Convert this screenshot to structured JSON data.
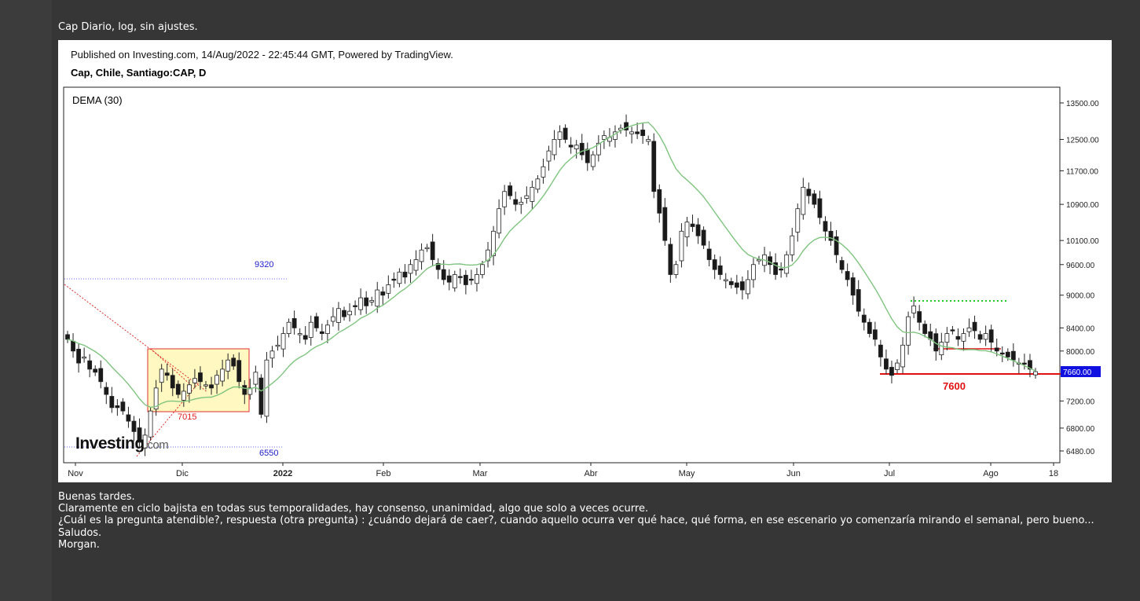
{
  "post": {
    "caption": "Cap Diario, log, sin ajustes.",
    "lines": [
      "Buenas tardes.",
      "Claramente en ciclo bajista en todas sus temporalidades, hay consenso, unanimidad, algo que solo a veces ocurre.",
      "¿Cuál es la pregunta atendible?, respuesta (otra pregunta) : ¿cuándo dejará de caer?, cuando aquello ocurra ver qué hace, qué forma, en ese escenario yo comenzaría mirando el semanal, pero bueno...",
      "Saludos.",
      "Morgan."
    ]
  },
  "chart": {
    "published": "Published on Investing.com, 14/Aug/2022 - 22:45:44 GMT, Powered by TradingView.",
    "symbol": "Cap, Chile, Santiago:CAP, D",
    "indicator": "DEMA (30)",
    "logo_text": "Investing",
    "logo_suffix": ".com"
  },
  "chart_data": {
    "type": "candlestick",
    "title": "Cap, Chile, Santiago:CAP, D",
    "scale": "log",
    "yticks": [
      13500,
      12500,
      11700,
      10900,
      10100,
      9600,
      9000,
      8400,
      8000,
      7200,
      6800,
      6480
    ],
    "xticks": [
      "Nov",
      "Dic",
      "2022",
      "Feb",
      "Mar",
      "Abr",
      "May",
      "Jun",
      "Jul",
      "Ago",
      "18"
    ],
    "last_price": "7660.00",
    "annotations": [
      "9320",
      "6550",
      "7015",
      "7600"
    ],
    "series": [
      {
        "name": "DEMA (30)",
        "color": "#7fc47f"
      }
    ],
    "closes": [
      8200,
      8000,
      7800,
      7900,
      7700,
      7650,
      7500,
      7300,
      7100,
      7100,
      7050,
      6900,
      6750,
      6600,
      6700,
      7050,
      7400,
      7700,
      7600,
      7400,
      7300,
      7350,
      7450,
      7550,
      7500,
      7450,
      7400,
      7600,
      7700,
      7850,
      7750,
      7500,
      7300,
      7400,
      7650,
      7000,
      7850,
      8000,
      8100,
      8300,
      8500,
      8400,
      8300,
      8200,
      8500,
      8400,
      8300,
      8450,
      8600,
      8750,
      8600,
      8700,
      8800,
      8950,
      8800,
      8900,
      9100,
      9000,
      9200,
      9300,
      9450,
      9350,
      9600,
      9700,
      9900,
      9950,
      9700,
      9500,
      9300,
      9250,
      9400,
      9350,
      9200,
      9300,
      9400,
      9600,
      9900,
      10300,
      10800,
      11200,
      11100,
      10900,
      10950,
      11100,
      11300,
      11500,
      11800,
      12200,
      12500,
      12700,
      12500,
      12300,
      12350,
      12100,
      11900,
      12100,
      12400,
      12600,
      12550,
      12700,
      12800,
      12750,
      12700,
      12650,
      12600,
      12500,
      11200,
      10700,
      10100,
      9400,
      9600,
      10300,
      10500,
      10400,
      10200,
      10000,
      9700,
      9500,
      9400,
      9300,
      9200,
      9150,
      9100,
      9300,
      9600,
      9700,
      9800,
      9600,
      9400,
      9500,
      9800,
      10200,
      10800,
      11300,
      11100,
      10900,
      10600,
      10300,
      10100,
      9800,
      9500,
      9300,
      9000,
      8700,
      8500,
      8300,
      8200,
      7900,
      7700,
      7600,
      7800,
      8100,
      8600,
      8800,
      8500,
      8300,
      8200,
      8000,
      8150,
      8300,
      8350,
      8200,
      8300,
      8400,
      8350,
      8200,
      8300,
      8150,
      8000,
      7950,
      7900,
      7850,
      7800,
      7780,
      7700,
      7660
    ],
    "levels": {
      "upper_blue": 9320,
      "lower_blue": 6550,
      "box_top": 8000,
      "box_bottom": 7015,
      "green_dotted": 8850,
      "red_support": 7600,
      "red_short": 8000
    }
  }
}
